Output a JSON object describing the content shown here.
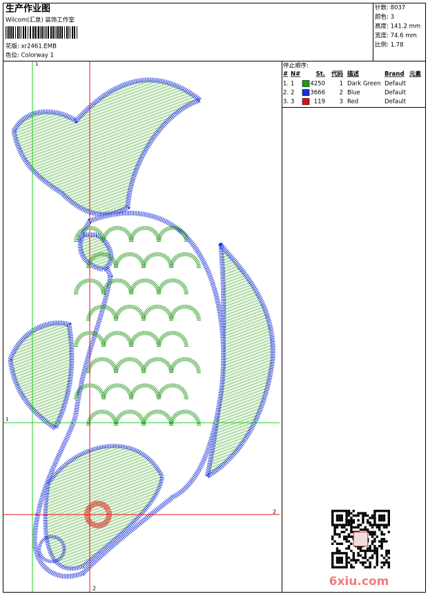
{
  "header": {
    "title": "生产作业图",
    "company": "Wilcom(汇泉) 装饰工作室",
    "design_file": "花版: xr2461.EMB",
    "colorway": "色位: Colorway 1"
  },
  "stats": [
    "针数: 8037",
    "颜色: 3",
    "高度: 141.2 mm",
    "宽度: 74.6 mm",
    "比例: 1.78"
  ],
  "stop_sequence": {
    "title": "停止顺序:",
    "columns": [
      "#",
      "N#",
      "St.",
      "代码",
      "描述",
      "Brand",
      "元素"
    ],
    "rows": [
      {
        "index": "1.",
        "n": 1,
        "color": "#1a9a1a",
        "stitches": 4250,
        "code": 1,
        "description": "Dark Green",
        "brand": "Default"
      },
      {
        "index": "2.",
        "n": 2,
        "color": "#1a2fd8",
        "stitches": 3666,
        "code": 2,
        "description": "Blue",
        "brand": "Default"
      },
      {
        "index": "3.",
        "n": 3,
        "color": "#e01010",
        "stitches": 119,
        "code": 3,
        "description": "Red",
        "brand": "Default"
      }
    ]
  },
  "guides": [
    {
      "label": "1",
      "color": "#22cc22"
    },
    {
      "label": "2",
      "color": "#ee1111"
    }
  ],
  "watermark": "6xiu.com"
}
